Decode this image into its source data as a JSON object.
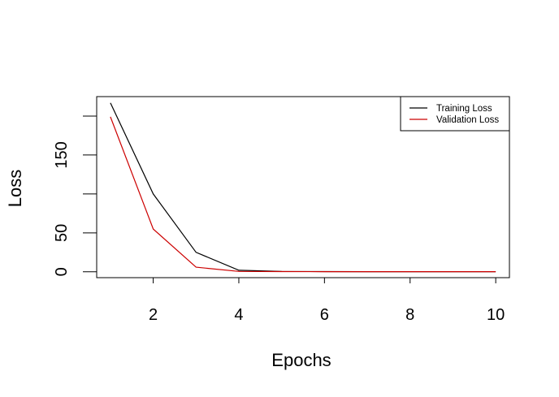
{
  "chart_data": {
    "type": "line",
    "title": "",
    "xlabel": "Epochs",
    "ylabel": "Loss",
    "xlim": [
      0.68,
      10.32
    ],
    "ylim": [
      -7.5,
      225
    ],
    "x_ticks": [
      2,
      4,
      6,
      8,
      10
    ],
    "y_ticks": [
      0,
      50,
      150
    ],
    "y_tick_marks": [
      0,
      50,
      100,
      150,
      200
    ],
    "grid": false,
    "legend_position": "top-right",
    "x": [
      1,
      2,
      3,
      4,
      5,
      6,
      7,
      8,
      9,
      10
    ],
    "series": [
      {
        "name": "Training Loss",
        "color": "#000000",
        "values": [
          217,
          100,
          25,
          2,
          0.5,
          0.3,
          0.2,
          0.2,
          0.2,
          0.2
        ]
      },
      {
        "name": "Validation Loss",
        "color": "#cc0000",
        "values": [
          199,
          55,
          6,
          0.5,
          0.3,
          0.2,
          0.2,
          0.2,
          0.2,
          0.2
        ]
      }
    ]
  }
}
